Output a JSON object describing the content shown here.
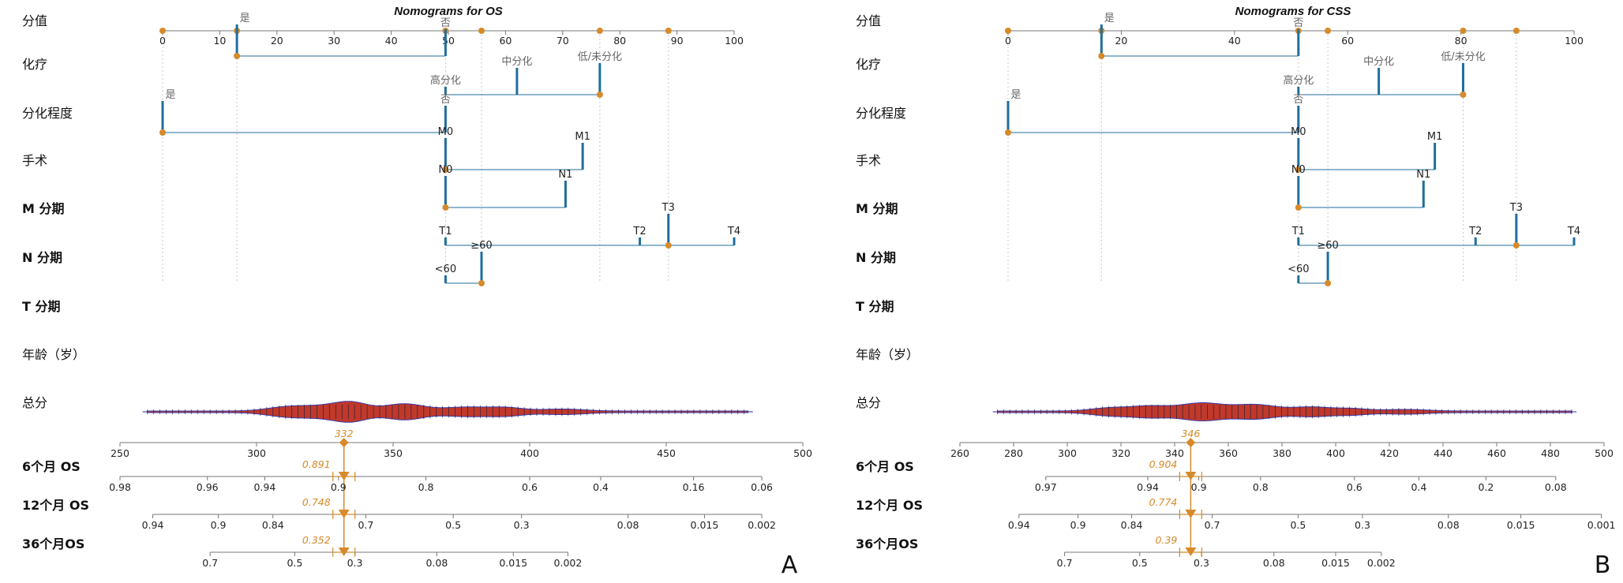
{
  "colors": {
    "points": "#d68a2a",
    "lines": "#1f6e9c",
    "axis": "#777777",
    "density": "#c0392b",
    "density_edge": "#3a3aa8",
    "total_line": "#2a2ab8"
  },
  "chart_data": [
    {
      "type": "nomogram",
      "panel": "A",
      "title": "Nomograms for OS",
      "points_label": "分值",
      "points_axis": {
        "ticks": [
          0,
          10,
          20,
          30,
          40,
          50,
          60,
          70,
          80,
          90,
          100
        ],
        "range": [
          0,
          100
        ]
      },
      "observed_points": [
        0,
        13,
        49.5,
        55.8,
        76.5,
        88.5
      ],
      "variables": [
        {
          "label": "化疗",
          "bold": false,
          "levels": [
            {
              "name": "是",
              "points": 13,
              "selected": true
            },
            {
              "name": "否",
              "points": 49.5
            }
          ]
        },
        {
          "label": "分化程度",
          "bold": false,
          "levels": [
            {
              "name": "高分化",
              "points": 49.5
            },
            {
              "name": "中分化",
              "points": 62
            },
            {
              "name": "低/未分化",
              "points": 76.5,
              "selected": true
            }
          ]
        },
        {
          "label": "手术",
          "bold": false,
          "levels": [
            {
              "name": "是",
              "points": 0,
              "selected": true
            },
            {
              "name": "否",
              "points": 49.5
            }
          ]
        },
        {
          "label": "M 分期",
          "bold": true,
          "levels": [
            {
              "name": "M0",
              "points": 49.5,
              "selected": true
            },
            {
              "name": "M1",
              "points": 73.5
            }
          ]
        },
        {
          "label": "N 分期",
          "bold": true,
          "levels": [
            {
              "name": "N0",
              "points": 49.5,
              "selected": true
            },
            {
              "name": "N1",
              "points": 70.5
            }
          ]
        },
        {
          "label": "T 分期",
          "bold": true,
          "levels": [
            {
              "name": "T1",
              "points": 49.5
            },
            {
              "name": "T2",
              "points": 83.5
            },
            {
              "name": "T3",
              "points": 88.5,
              "selected": true
            },
            {
              "name": "T4",
              "points": 100
            }
          ]
        },
        {
          "label": "年龄（岁）",
          "bold": false,
          "levels": [
            {
              "name": "<60",
              "points": 49.5
            },
            {
              "name": "≥60",
              "points": 55.8,
              "selected": true
            }
          ]
        }
      ],
      "total_points": {
        "label": "总分",
        "ticks": [
          250,
          300,
          350,
          400,
          450,
          500
        ],
        "range": [
          250,
          500
        ],
        "observed": 332,
        "observed_label": "332",
        "density_range": [
          260,
          480
        ]
      },
      "outcomes": [
        {
          "label": "6个月  OS",
          "ticks": [
            {
              "label": "0.98",
              "total": 250
            },
            {
              "label": "0.96",
              "total": 282
            },
            {
              "label": "0.94",
              "total": 303
            },
            {
              "label": "0.9",
              "total": 330
            },
            {
              "label": "0.8",
              "total": 362
            },
            {
              "label": "0.6",
              "total": 400
            },
            {
              "label": "0.4",
              "total": 426
            },
            {
              "label": "0.16",
              "total": 460
            },
            {
              "label": "0.06",
              "total": 485
            }
          ],
          "observed": "0.891"
        },
        {
          "label": "12个月  OS",
          "ticks": [
            {
              "label": "0.94",
              "total": 262
            },
            {
              "label": "0.9",
              "total": 286
            },
            {
              "label": "0.84",
              "total": 306
            },
            {
              "label": "0.7",
              "total": 340
            },
            {
              "label": "0.5",
              "total": 372
            },
            {
              "label": "0.3",
              "total": 397
            },
            {
              "label": "0.08",
              "total": 436
            },
            {
              "label": "0.015",
              "total": 464
            },
            {
              "label": "0.002",
              "total": 485
            }
          ],
          "observed": "0.748"
        },
        {
          "label": "36个月OS",
          "ticks": [
            {
              "label": "0.7",
              "total": 283
            },
            {
              "label": "0.5",
              "total": 314
            },
            {
              "label": "0.3",
              "total": 336
            },
            {
              "label": "0.08",
              "total": 366
            },
            {
              "label": "0.015",
              "total": 394
            },
            {
              "label": "0.002",
              "total": 414
            }
          ],
          "observed": "0.352"
        }
      ]
    },
    {
      "type": "nomogram",
      "panel": "B",
      "title": "Nomograms for CSS",
      "points_label": "分值",
      "points_axis": {
        "ticks": [
          0,
          20,
          40,
          60,
          80,
          100
        ],
        "range": [
          0,
          100
        ]
      },
      "observed_points": [
        0,
        16.5,
        51.3,
        56.5,
        80.4,
        89.8
      ],
      "variables": [
        {
          "label": "化疗",
          "bold": false,
          "levels": [
            {
              "name": "是",
              "points": 16.5,
              "selected": true
            },
            {
              "name": "否",
              "points": 51.3
            }
          ]
        },
        {
          "label": "分化程度",
          "bold": false,
          "levels": [
            {
              "name": "高分化",
              "points": 51.3
            },
            {
              "name": "中分化",
              "points": 65.5
            },
            {
              "name": "低/未分化",
              "points": 80.4,
              "selected": true
            }
          ]
        },
        {
          "label": "手术",
          "bold": false,
          "levels": [
            {
              "name": "是",
              "points": 0,
              "selected": true
            },
            {
              "name": "否",
              "points": 51.3
            }
          ]
        },
        {
          "label": "M 分期",
          "bold": true,
          "levels": [
            {
              "name": "M0",
              "points": 51.3,
              "selected": true
            },
            {
              "name": "M1",
              "points": 75.4
            }
          ]
        },
        {
          "label": "N 分期",
          "bold": true,
          "levels": [
            {
              "name": "N0",
              "points": 51.3,
              "selected": true
            },
            {
              "name": "N1",
              "points": 73.4
            }
          ]
        },
        {
          "label": "T 分期",
          "bold": true,
          "levels": [
            {
              "name": "T1",
              "points": 51.3
            },
            {
              "name": "T2",
              "points": 82.6
            },
            {
              "name": "T3",
              "points": 89.8,
              "selected": true
            },
            {
              "name": "T4",
              "points": 100
            }
          ]
        },
        {
          "label": "年龄（岁）",
          "bold": false,
          "levels": [
            {
              "name": "<60",
              "points": 51.3
            },
            {
              "name": "≥60",
              "points": 56.5,
              "selected": true
            }
          ]
        }
      ],
      "total_points": {
        "label": "总分",
        "ticks": [
          260,
          280,
          300,
          320,
          340,
          360,
          380,
          400,
          420,
          440,
          460,
          480,
          500
        ],
        "range": [
          260,
          500
        ],
        "observed": 346,
        "observed_label": "346",
        "density_range": [
          274,
          488
        ]
      },
      "outcomes": [
        {
          "label": "6个月  OS",
          "ticks": [
            {
              "label": "0.97",
              "total": 292
            },
            {
              "label": "0.94",
              "total": 330
            },
            {
              "label": "0.9",
              "total": 349
            },
            {
              "label": "0.8",
              "total": 372
            },
            {
              "label": "0.6",
              "total": 407
            },
            {
              "label": "0.4",
              "total": 431
            },
            {
              "label": "0.2",
              "total": 456
            },
            {
              "label": "0.08",
              "total": 482
            }
          ],
          "observed": "0.904"
        },
        {
          "label": "12个月  OS",
          "ticks": [
            {
              "label": "0.94",
              "total": 282
            },
            {
              "label": "0.9",
              "total": 304
            },
            {
              "label": "0.84",
              "total": 324
            },
            {
              "label": "0.7",
              "total": 354
            },
            {
              "label": "0.5",
              "total": 386
            },
            {
              "label": "0.3",
              "total": 410
            },
            {
              "label": "0.08",
              "total": 442
            },
            {
              "label": "0.015",
              "total": 469
            },
            {
              "label": "0.001",
              "total": 499
            }
          ],
          "observed": "0.774"
        },
        {
          "label": "36个月OS",
          "ticks": [
            {
              "label": "0.7",
              "total": 299
            },
            {
              "label": "0.5",
              "total": 327
            },
            {
              "label": "0.3",
              "total": 350
            },
            {
              "label": "0.08",
              "total": 377
            },
            {
              "label": "0.015",
              "total": 400
            },
            {
              "label": "0.002",
              "total": 417
            }
          ],
          "observed": "0.39"
        }
      ]
    }
  ]
}
